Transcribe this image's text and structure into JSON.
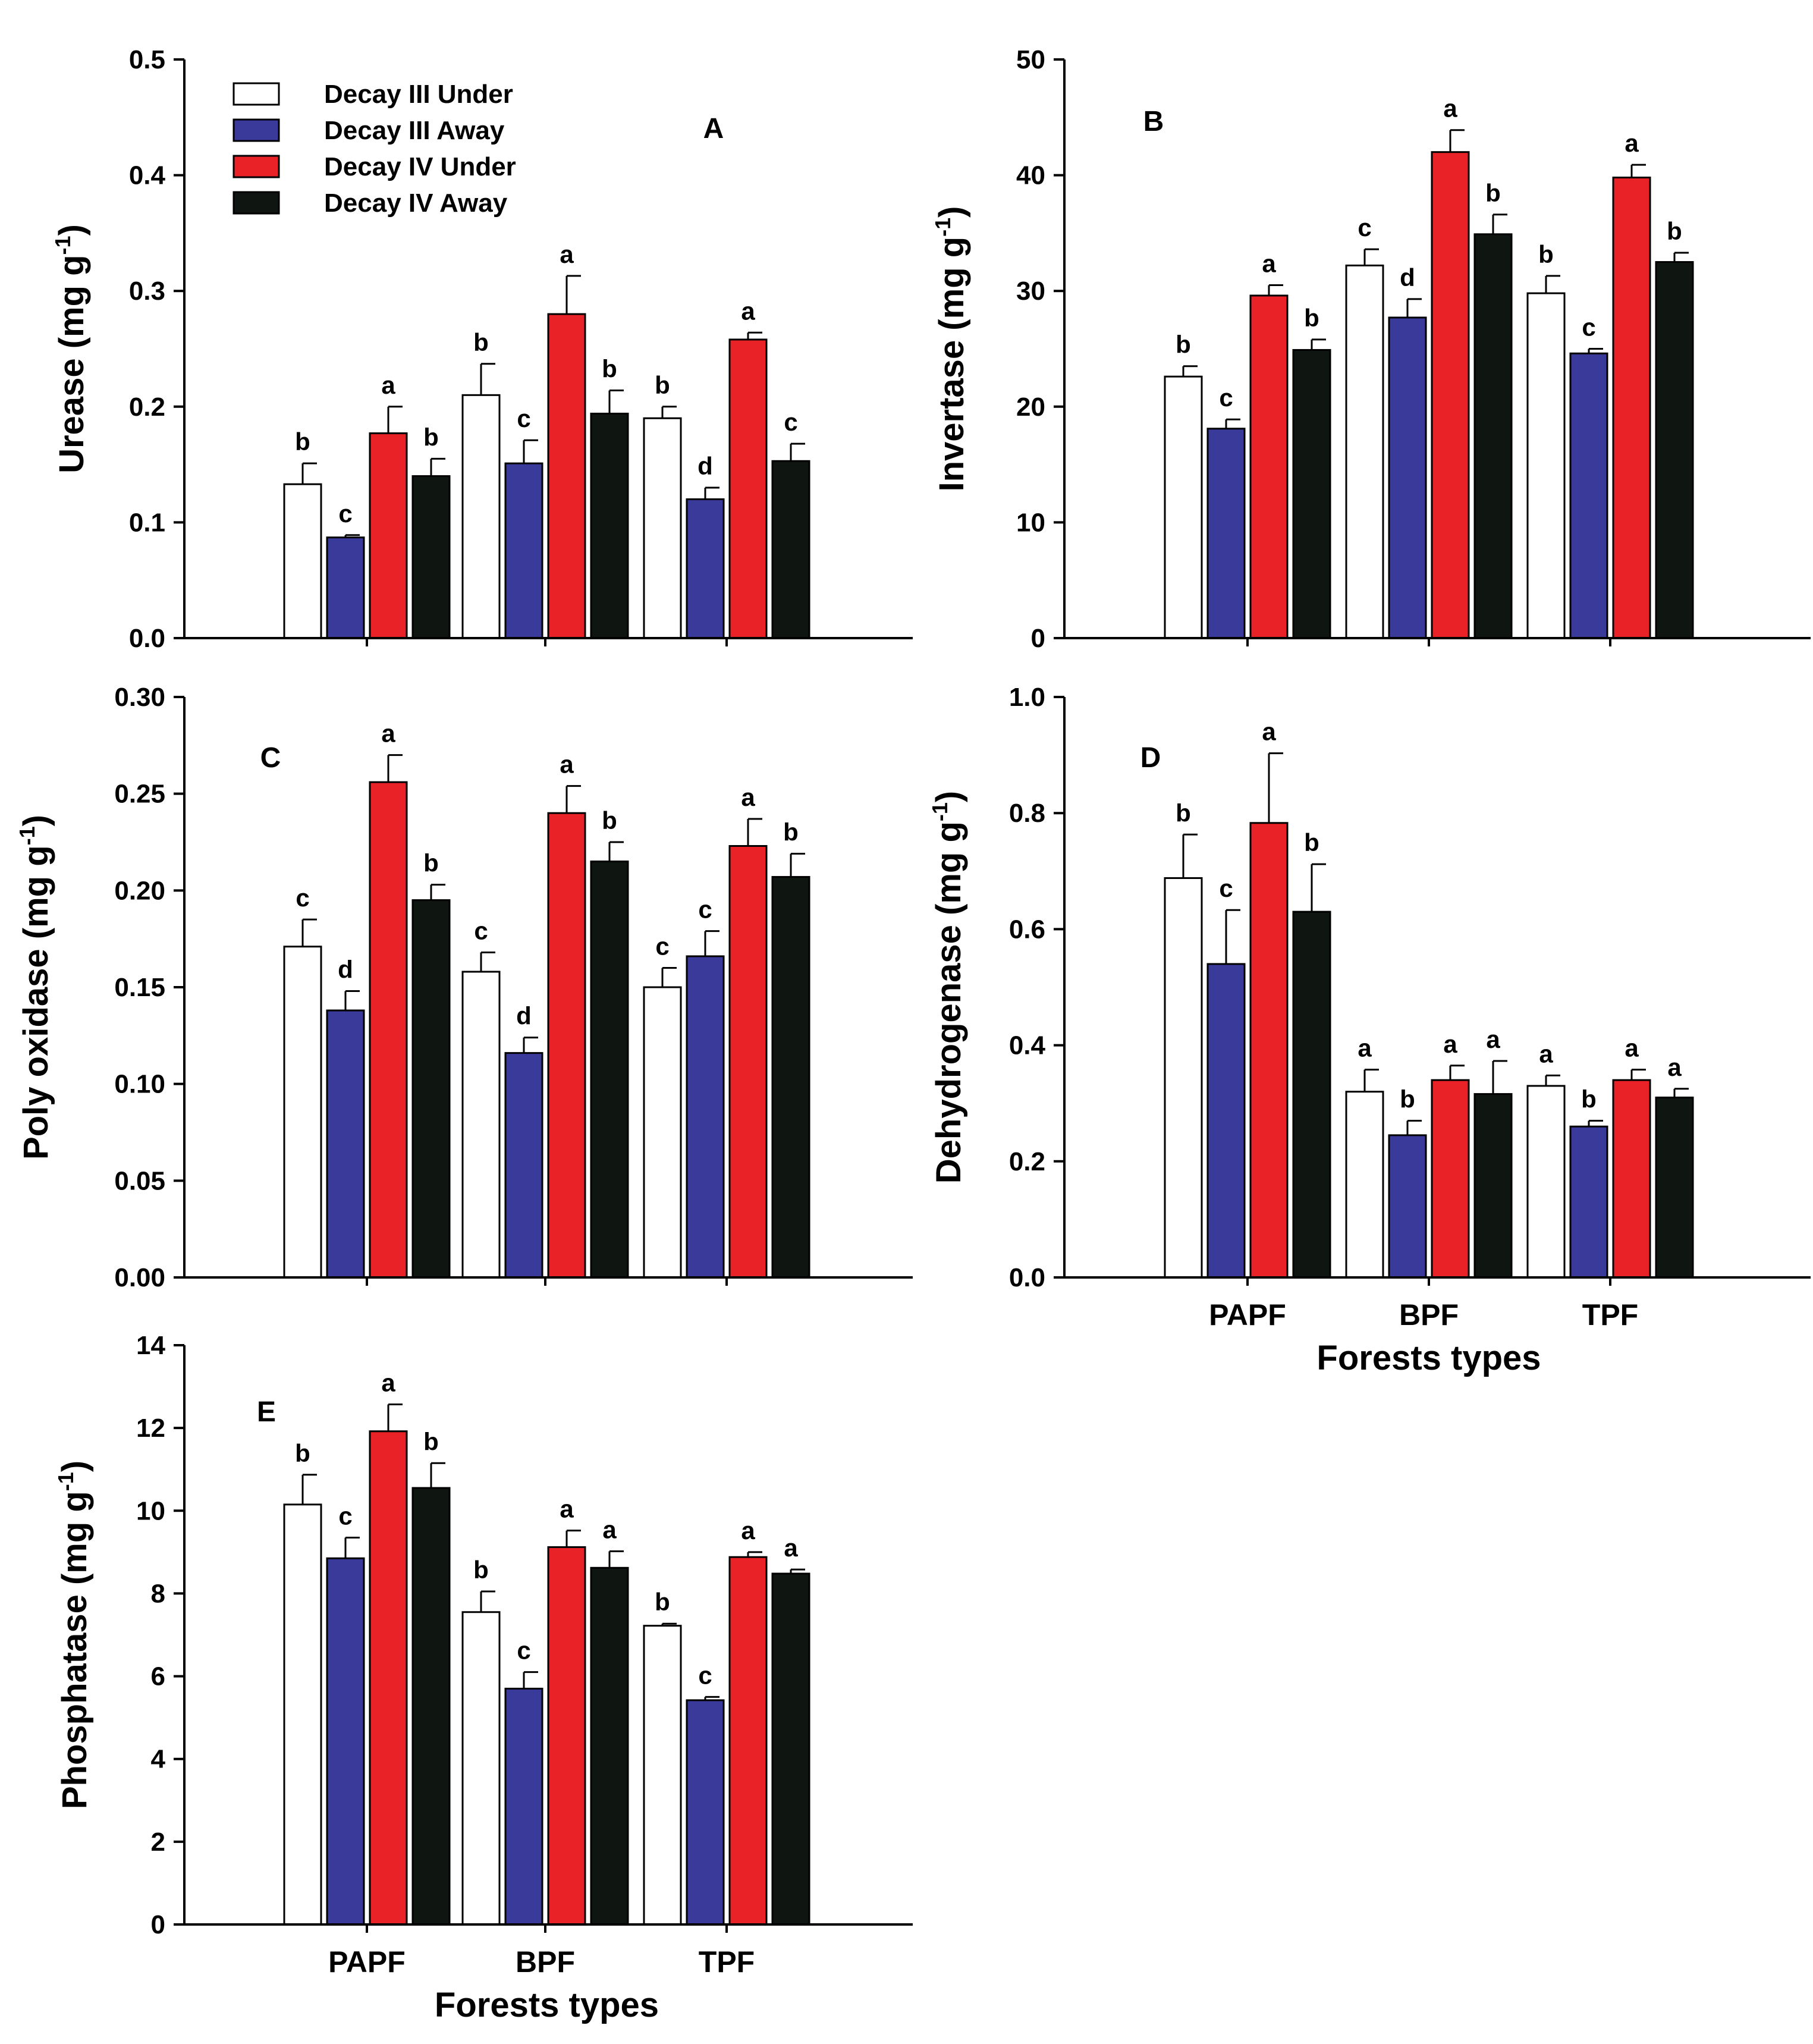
{
  "legend": [
    {
      "name": "Decay III Under",
      "color": "#ffffff"
    },
    {
      "name": "Decay III Away",
      "color": "#3a3a9a"
    },
    {
      "name": "Decay IV Under",
      "color": "#e82226"
    },
    {
      "name": "Decay IV Away",
      "color": "#0f1612"
    }
  ],
  "chart_data": [
    {
      "type": "bar",
      "panel": "A",
      "categories": [
        "PAPF",
        "BPF",
        "TPF"
      ],
      "ylabel": "Urease (mg g",
      "ylabel_sup": "-1",
      "ylabel_close": ")",
      "ylim": [
        0,
        0.5
      ],
      "yticks": [
        0.0,
        0.1,
        0.2,
        0.3,
        0.4,
        0.5
      ],
      "ytick_labels": [
        "0.0",
        "0.1",
        "0.2",
        "0.3",
        "0.4",
        "0.5"
      ],
      "show_xlabels": false,
      "xlabel": "",
      "series": [
        {
          "name": "Decay III Under",
          "values": [
            0.133,
            0.21,
            0.19
          ],
          "errors": [
            0.018,
            0.027,
            0.01
          ],
          "letters": [
            "b",
            "b",
            "b"
          ]
        },
        {
          "name": "Decay III Away",
          "values": [
            0.087,
            0.151,
            0.12
          ],
          "errors": [
            0.002,
            0.02,
            0.01
          ],
          "letters": [
            "c",
            "c",
            "d"
          ]
        },
        {
          "name": "Decay IV Under",
          "values": [
            0.177,
            0.28,
            0.258
          ],
          "errors": [
            0.023,
            0.033,
            0.006
          ],
          "letters": [
            "a",
            "a",
            "a"
          ]
        },
        {
          "name": "Decay IV Away",
          "values": [
            0.14,
            0.194,
            0.153
          ],
          "errors": [
            0.015,
            0.02,
            0.015
          ],
          "letters": [
            "b",
            "b",
            "c"
          ]
        }
      ]
    },
    {
      "type": "bar",
      "panel": "B",
      "categories": [
        "PAPF",
        "BPF",
        "TPF"
      ],
      "ylabel": "Invertase (mg g",
      "ylabel_sup": "-1",
      "ylabel_close": ")",
      "ylim": [
        0,
        50
      ],
      "yticks": [
        0,
        10,
        20,
        30,
        40,
        50
      ],
      "ytick_labels": [
        "0",
        "10",
        "20",
        "30",
        "40",
        "50"
      ],
      "show_xlabels": false,
      "xlabel": "",
      "series": [
        {
          "name": "Decay III Under",
          "values": [
            22.6,
            32.2,
            29.8
          ],
          "errors": [
            0.9,
            1.4,
            1.5
          ],
          "letters": [
            "b",
            "c",
            "b"
          ]
        },
        {
          "name": "Decay III Away",
          "values": [
            18.1,
            27.7,
            24.6
          ],
          "errors": [
            0.8,
            1.6,
            0.4
          ],
          "letters": [
            "c",
            "d",
            "c"
          ]
        },
        {
          "name": "Decay IV Under",
          "values": [
            29.6,
            42.0,
            39.8
          ],
          "errors": [
            0.9,
            1.9,
            1.1
          ],
          "letters": [
            "a",
            "a",
            "a"
          ]
        },
        {
          "name": "Decay IV Away",
          "values": [
            24.9,
            34.9,
            32.5
          ],
          "errors": [
            0.9,
            1.7,
            0.8
          ],
          "letters": [
            "b",
            "b",
            "b"
          ]
        }
      ]
    },
    {
      "type": "bar",
      "panel": "C",
      "categories": [
        "PAPF",
        "BPF",
        "TPF"
      ],
      "ylabel": "Poly oxidase (mg g",
      "ylabel_sup": "-1",
      "ylabel_close": ")",
      "ylim": [
        0,
        0.3
      ],
      "yticks": [
        0.0,
        0.05,
        0.1,
        0.15,
        0.2,
        0.25,
        0.3
      ],
      "ytick_labels": [
        "0.00",
        "0.05",
        "0.10",
        "0.15",
        "0.20",
        "0.25",
        "0.30"
      ],
      "show_xlabels": false,
      "xlabel": "",
      "series": [
        {
          "name": "Decay III Under",
          "values": [
            0.171,
            0.158,
            0.15
          ],
          "errors": [
            0.014,
            0.01,
            0.01
          ],
          "letters": [
            "c",
            "c",
            "c"
          ]
        },
        {
          "name": "Decay III Away",
          "values": [
            0.138,
            0.116,
            0.166
          ],
          "errors": [
            0.01,
            0.008,
            0.013
          ],
          "letters": [
            "d",
            "d",
            "c"
          ]
        },
        {
          "name": "Decay IV Under",
          "values": [
            0.256,
            0.24,
            0.223
          ],
          "errors": [
            0.014,
            0.014,
            0.014
          ],
          "letters": [
            "a",
            "a",
            "a"
          ]
        },
        {
          "name": "Decay IV Away",
          "values": [
            0.195,
            0.215,
            0.207
          ],
          "errors": [
            0.008,
            0.01,
            0.012
          ],
          "letters": [
            "b",
            "b",
            "b"
          ]
        }
      ]
    },
    {
      "type": "bar",
      "panel": "D",
      "categories": [
        "PAPF",
        "BPF",
        "TPF"
      ],
      "ylabel": "Dehydrogenase (mg g",
      "ylabel_sup": "-1",
      "ylabel_close": ")",
      "ylim": [
        0,
        1.0
      ],
      "yticks": [
        0.0,
        0.2,
        0.4,
        0.6,
        0.8,
        1.0
      ],
      "ytick_labels": [
        "0.0",
        "0.2",
        "0.4",
        "0.6",
        "0.8",
        "1.0"
      ],
      "show_xlabels": true,
      "xlabel": "Forests types",
      "series": [
        {
          "name": "Decay III Under",
          "values": [
            0.688,
            0.32,
            0.33
          ],
          "errors": [
            0.075,
            0.038,
            0.018
          ],
          "letters": [
            "b",
            "a",
            "a"
          ]
        },
        {
          "name": "Decay III Away",
          "values": [
            0.54,
            0.245,
            0.26
          ],
          "errors": [
            0.093,
            0.025,
            0.01
          ],
          "letters": [
            "c",
            "b",
            "b"
          ]
        },
        {
          "name": "Decay IV Under",
          "values": [
            0.783,
            0.34,
            0.34
          ],
          "errors": [
            0.12,
            0.025,
            0.018
          ],
          "letters": [
            "a",
            "a",
            "a"
          ]
        },
        {
          "name": "Decay IV Away",
          "values": [
            0.63,
            0.316,
            0.31
          ],
          "errors": [
            0.082,
            0.057,
            0.015
          ],
          "letters": [
            "b",
            "a",
            "a"
          ]
        }
      ]
    },
    {
      "type": "bar",
      "panel": "E",
      "categories": [
        "PAPF",
        "BPF",
        "TPF"
      ],
      "ylabel": "Phosphatase (mg g",
      "ylabel_sup": "-1",
      "ylabel_close": ")",
      "ylim": [
        0,
        14
      ],
      "yticks": [
        0,
        2,
        4,
        6,
        8,
        10,
        12,
        14
      ],
      "ytick_labels": [
        "0",
        "2",
        "4",
        "6",
        "8",
        "10",
        "12",
        "14"
      ],
      "show_xlabels": true,
      "xlabel": "Forests types",
      "series": [
        {
          "name": "Decay III Under",
          "values": [
            10.15,
            7.55,
            7.22
          ],
          "errors": [
            0.72,
            0.5,
            0.05
          ],
          "letters": [
            "b",
            "b",
            "b"
          ]
        },
        {
          "name": "Decay III Away",
          "values": [
            8.85,
            5.7,
            5.42
          ],
          "errors": [
            0.5,
            0.4,
            0.08
          ],
          "letters": [
            "c",
            "c",
            "c"
          ]
        },
        {
          "name": "Decay IV Under",
          "values": [
            11.92,
            9.12,
            8.88
          ],
          "errors": [
            0.65,
            0.4,
            0.12
          ],
          "letters": [
            "a",
            "a",
            "a"
          ]
        },
        {
          "name": "Decay IV Away",
          "values": [
            10.55,
            8.62,
            8.48
          ],
          "errors": [
            0.6,
            0.4,
            0.1
          ],
          "letters": [
            "b",
            "a",
            "a"
          ]
        }
      ]
    }
  ]
}
